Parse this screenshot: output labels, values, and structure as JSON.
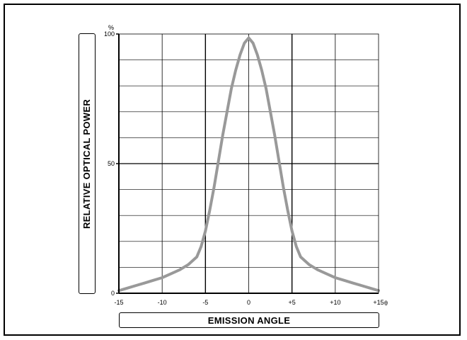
{
  "chart_data": {
    "type": "line",
    "title": "",
    "xlabel": "EMISSION ANGLE",
    "ylabel": "RELATIVE OPTICAL POWER",
    "y_unit": "%",
    "x_unit": "θ",
    "xlim": [
      -15,
      15
    ],
    "ylim": [
      0,
      100
    ],
    "grid": true,
    "x_ticks": [
      "-15",
      "-10",
      "-5",
      "0",
      "+5",
      "+10",
      "+15"
    ],
    "y_ticks": [
      "0",
      "50",
      "100"
    ],
    "colors": {
      "curve": "#999999",
      "grid": "#000000"
    },
    "series": [
      {
        "x": [
          -15,
          -14,
          -13,
          -12,
          -11,
          -10,
          -9,
          -8,
          -7,
          -6,
          -5.5,
          -5,
          -4.5,
          -4,
          -3.5,
          -3,
          -2.5,
          -2,
          -1.5,
          -1,
          -0.5,
          0,
          0.5,
          1,
          1.5,
          2,
          2.5,
          3,
          3.5,
          4,
          4.5,
          5,
          5.5,
          6,
          7,
          8,
          9,
          10,
          11,
          12,
          13,
          14,
          15
        ],
        "y": [
          1,
          2,
          3,
          4,
          5,
          6,
          7.5,
          9,
          11,
          14,
          18,
          24,
          32,
          41,
          51,
          61,
          70,
          79,
          86,
          92,
          96.5,
          98.5,
          96.5,
          92,
          86,
          79,
          70,
          61,
          51,
          41,
          32,
          24,
          18,
          14,
          11,
          9,
          7.5,
          6,
          5,
          4,
          3,
          2,
          1
        ]
      }
    ]
  }
}
